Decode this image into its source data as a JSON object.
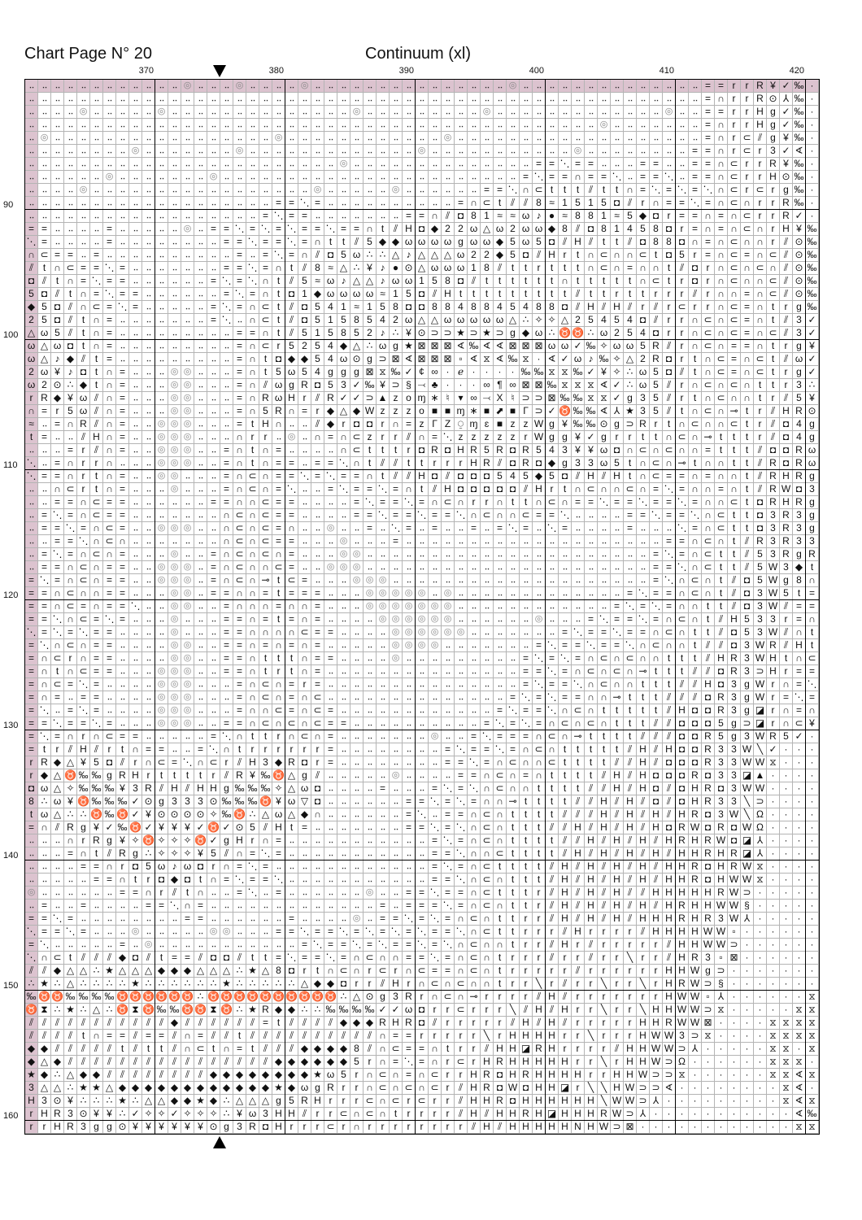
{
  "header": {
    "page_title": "Chart Page N° 20",
    "pattern_title": "Continuum (xl)"
  },
  "grid": {
    "column_labels": [
      "370",
      "380",
      "390",
      "400",
      "410",
      "420"
    ],
    "row_labels": [
      "90",
      "100",
      "110",
      "120",
      "130",
      "140",
      "150",
      "160"
    ],
    "highlight_color": "#dcc3cf",
    "center_marker_icon": "triangle",
    "rows": [
      "‥‥‥‥‥‥‥‥‥‥ ‥‥◎‥‥‥◎‥‥‥ ‥◎‥‥‥‥‥‥‥‥ ‥‥‥‥‥‥‥◎‥‥ ‥‥‥‥‥‥‥‥‥‥ ‥‥==rrR¥✓‰ ·",
      "‥‥‥‥‥‥‥‥‥‥ ‥‥‥‥‥‥‥‥‥‥ ‥‥‥‥‥‥‥‥‥‥ ‥‥‥‥‥‥‥‥‥‥ ‥‥‥‥‥‥‥‥‥‥ ‥‥=∩rrR⊙⅄‰ ·",
      "‥‥‥‥◎‥‥‥‥‥ ◎‥‥‥‥‥‥‥‥‥ ‥‥‥‥‥◎‥‥‥‥ ‥‥‥‥‥◎‥‥‥‥ ‥‥‥‥‥‥‥‥‥◎ ‥‥==rrHg✓‰ ·",
      "‥‥‥‥‥‥‥‥‥‥ ‥‥‥‥‥‥‥‥‥‥ ‥‥‥‥‥‥‥‥‥‥ ‥‥‥‥‥‥‥‥‥‥ ‥‥‥‥◎‥‥‥‥‥ ‥‥=∩rrHg✓‰ ·",
      "‥◎‥‥‥‥‥‥‥‥ ‥‥‥‥‥‥‥‥‥◎ ‥‥‥‥‥‥‥‥‥‥ ‥‥◎‥‥‥‥‥‥‥ ‥‥‥‥‥‥‥‥‥‥ ‥‥=∩r⊂⫽g¥‰ ·",
      "‥‥‥‥‥‥‥‥◎‥ ‥‥‥‥‥‥◎‥‥‥ ‥‥‥‥‥‥‥‥‥‥ ◎‥‥‥‥‥‥‥‥‥ ‥‥◎‥‥‥‥‥‥‥ ‥==∩r⊂r3✓∢ ·",
      "‥‥‥‥‥‥‥‥‥‥ ‥‥‥‥‥‥‥‥‥‥ ‥‥‥‥◎‥‥‥‥‥ ‥‥‥‥‥‥‥‥‥= =⋱==‥‥‥==‥ ‥==∩⊂rrR¥‰ ·",
      "‥‥‥‥‥‥◎‥‥‥ ‥‥‥‥◎‥‥‥‥‥ ‥‥‥‥‥‥‥‥‥‥ ‥‥‥‥‥‥‥‥=⋱ ==∩==⋱‥==⋱ ‥==∩⊂rrH⊙‰ ·",
      "‥‥‥‥◎‥‥‥‥‥ ‥‥‥‥‥‥‥‥‥‥ ‥‥◎‥‥‥‥‥◎‥ ‥‥‥‥‥==⋱∩⊂ ttt⫽tt∩=⋱= ⋱=⋱∩⊂r⊂rg‰ ·",
      "‥‥‥‥‥‥‥‥‥‥ ‥‥‥‥‥‥‥‥‥= =⋱=‥‥‥‥‥‥‥ ‥‥‥=∩⊂t⫽⫽8 ≈1515◘⫽r∩= =⋱=∩⊂∩rrR‰ ·",
      "‥‥‥‥‥‥‥‥‥‥ ‥‥‥‥‥‥‥‥=⋱ ==‥‥‥‥‥‥‥= =∩⫽◘81≈≈ω♪ ●≈881≈5◆◘r ==∩=∩⊂rrR✓ ·",
      "==‥‥‥‥=‥‥‥ ‥‥◎‥==⋱=⋱= ⋱==⋱==∩t⫽H ◘◆22ω△ω2ωω ◆8⫽◘81458◘ r=∩=∩⊂∩rH¥ ‰",
      "⋱=‥‥‥‥=‥‥‥ ‥‥‥‥‥==⋱== ⋱=∩tt⫽5◆◆ω ωωωgωω◆5ω5 ◘⫽H⫽tt⫽◘88 ◘∩=∩⊂∩∩r⫽⊙ ‰",
      "∩⊂==‥=‥‥‥‥ ‥‥‥‥‥‥=‥=⋱ =∩⫽◘5ω∴∴△♪ △△△ω22◆5◘⫽ Hrt∩⊂∩∩⊂t◘ 5r=∩⊂=∩⊂⫽⊙ ‰",
      "⫽t∩⊂==⋱=‥‥ ‥‥‥‥‥==⋱=∩ t⫽8≈△∴¥♪●⊙ △ωωω18⫽ttr ttt∩⊂∩=∩∩t ⫽◘r∩⊂∩⊂∩⫽⊙ ‰",
      "◘⫽t∩=⋱==‥‥ ‥‥‥‥=⋱=⋱∩t ⫽5≈ω♪△△♪ωω 158◘⫽ttttt t∩ttttt∩⊂t r◘r∩⊂∩∩⊂⫽⊙ ‰",
      "5◘⫽t∩=⋱==‥ ‥‥‥‥‥=⋱=∩t ◘1◆ωωωω≈15 ◘⫽Httttttt tt⫽ttrttrr r⫽r∩∩=∩⊂⫽⊙ ‰",
      "◆5◘⫽∩⊂=⋱=‥ ‥‥‥‥=⋱=∩⊂t ⫽◘541≈158◘ ◘884884548 8◘⫽H⫽H⫽r⫽r ⊂rr∩⊂=∩trg ‰",
      "25◘⫽t∩=‥‥‥ ‥‥‥‥=⋱‥∩⊂t ⫽◘5158542ω △△ωωωωω△∴✧ ✧△25454◘⫽r r∩⊂∩⊂=∩t⫽3 ✓",
      "△ω5⫽t∩=‥‥‥ ‥‥‥‥‥‥==∩t ⫽515852♪∴¥ ⊙⊃⊃★⊃★⊃g◆ω ∴♉♉∴ω254◘r r∩⊂∩⊂=∩⊂⫽3 ✓",
      "ω△ω◘t∩=‥‥‥ ‥‥‥‥‥‥=∩⊂r 5254◆△∴ωg★ ⊠⊠⊠∢‰∢∢⊠⊠⊠ ωω✓‰✧ωω5R⫽ r∩⊂∩==∩trg ¥",
      "ω△♪◆⫽t=‥‥‥ ‥‥‥‥‥‥=∩t◘ ◆◆54ω⊙g⊃⊠∢ ⊠⊠⊠▫∢⧖∢‰⧖· ∢✓ω♪‰✧△2R◘ rt∩⊂=∩⊂t⫽ω ✓",
      "2ω¥♪◘t∩=‥‥ ‥◎◎‥‥‥=∩t5 ω54ggg⊠⧖‰✓ ¢∞∙ℯ∙∙∙∙‰‰ ⧖⧖‰✓¥✧∴ω5◘ ⫽t∩⊂=∩⊂trg ✓",
      "ω2⊙∴◆t∩=‥‥ ‥◎◎‥‥‥=∩⫽ω gR◘53✓‰¥⊃§ ⤙♣∙∙∙∞¶∞⊠⊠ ‰⧖⧖⧖∢✓∴ω5⫽ r∩⊂∩⊂∩ttr3 ∴",
      "rR◆¥ω⫽∩=‥‥ ‥◎◎‥‥‥=∩Rω Hr⫽R✓✓⊃▲zo ɱ∗♮▾∞⤙X♮⊃⊃ ⊠‰‰⧖⧖✓g35⫽ rt∩⊂∩∩tr⫽5 ¥",
      "∩=r5ω⫽∩=‥‥ ‥◎◎‥‥‥=∩5R ∩=r◆△◆Wzzz o■■ɱ∗■⬈■Γ⊃ ✓♉‰‰∢⅄★35⫽ t∩⊂∩⊸tr⫽HR ⊙",
      "≈‥=∩R⫽∩=‥‥ ◎◎◎‥‥‥=tH∩ ‥‥⫽◆r◘◘r∩= zΓZ⍜ɱɛ■zzW g¥‰‰⊙g⊃Rrt ∩⊂∩∩⊂tr⫽◘4 g",
      "t=‥‥⫽H∩=‥‥ ◎◎◎‥‥‥∩rr‥ ◎‥∩=∩⊂zrr⫽ ∩=⋱zzzzzrW gg¥✓grrtt∩ ⊂∩⊸tttr⫽◘4 g",
      "‥‥‥=r⫽∩=‥‥ ◎◎◎‥‥=∩t∩= ‥‥‥‥∩⊂tttr ◘R◘HR5R◘R5 43¥¥ω◘∩⊂∩⊂ ∩∩=ttt⫽◘◘R ω",
      "⋱‥=∩rr∩‥‥‥ ◎◎◎‥‥=∩t∩= =‥==⋱∩t⫽⫽t trrrHR⫽◘R◘ ◆g33ω5t∩⊂∩ ⊸t∩∩tt⫽R◘R ω",
      "⋱==∩rt∩=‥‥ ◎◎‥‥‥=∩⊂∩= =⋱=⋱==∩t⫽⫽ H◘⫽◘◘◘545◆ 5◘⫽H⫽Ht∩⊂= =∩=∩∩t⫽RHR g",
      "‥‥∩⊂rt∩=‥‥ ‥◎‥‥‥=∩⊂∩= ⋱‥‥=⋱==⋱=∩ t⫽H◘◘◘◘◘⫽H rt∩⊂∩∩⊂∩=⋱ =∩∩=∩t⫽RW◘ 3",
      "‥‥==∩⊂==‥‥ ‥‥‥‥==∩∩⊂= =‥‥‥‥=⋱==⋱ =∩⊂∩rr∩tt∩ ⊂∩==⋱==⋱== ⋱=∩∩⊂t◘RHR g",
      "‥=⋱=∩⊂==‥‥ ‥‥‥‥‥∩⊂∩⊂= =‥‥‥‥==⋱== ⋱==⋱∩⊂∩∩⊂= =⋱‥‥‥‥==⋱= =⋱∩⊂tt◘3R3 g",
      "‥==⋱=∩⊂=‥‥ ◎◎◎‥‥∩⊂∩⊂= ∩‥‥◎‥‥=‥⋱= ‥=‥‥=‥=⋱=‥ ⋱=‥‥‥‥=‥‥‥ ⋱=∩⊂tt◘3R3 g",
      "‥‥==⋱∩⊂∩‥‥ ‥‥‥‥‥∩⊂∩⊂= =‥‥‥◎‥‥‥=‥ ‥‥‥‥‥‥‥‥‥‥ ‥‥‥‥‥‥‥‥‥= =∩⊂∩t⫽R3R3 3",
      "‥=⋱=∩⊂∩=‥‥ ‥◎‥‥=∩⊂∩⊂∩ =‥‥‥◎◎‥‥‥‥ ‥‥‥‥‥‥‥‥‥‥ ‥‥‥‥‥‥‥‥=⋱ =∩⊂tt⫽53Rg R",
      "‥==∩⊂∩==‥‥ ◎◎◎‥=∩⊂∩∩⊂ =‥‥◎◎◎‥‥‥‥ ‥‥‥‥‥‥‥‥‥‥ ‥‥‥‥‥‥‥‥== ⋱∩⊂tt⫽5W3◆ t",
      "=⋱=∩⊂∩==‥‥ ◎◎◎‥=∩⊂∩⊸t ⊂=‥‥‥◎◎◎‥‥ ‥‥‥‥‥‥‥‥‥‥ ‥‥‥‥‥‥‥‥=⋱ ∩⊂∩t⫽◘5Wg8 ∩",
      "==∩⊂∩∩==‥‥ ‥◎◎‥==∩∩=t ===‥‥‥◎◎◎◎ ◎‥◎‥‥‥‥‥‥‥ ‥‥‥‥‥‥=⋱== ∩⊂∩t⫽◘3W5t =",
      "==∩⊂=∩==⋱‥ ‥◎◎‥‥=∩∩∩= ∩∩=‥‥‥◎◎◎◎ ◎◎◎‥‥‥‥‥‥‥ ‥‥‥‥‥=⋱=⋱= ∩∩tt⫽◘3W⫽= =",
      "==⋱∩⊂=⋱=‥‥ ‥◎‥‥‥==∩=t =∩=‥‥‥‥◎◎◎ ◎◎◎‥‥‥‥‥‥◎ ‥‥‥=⋱==⋱=∩ ⊂∩t⫽H533r= ∩",
      "⋱=⋱=⋱==‥‥‥ ‥◎‥‥‥==∩∩∩ ∩⊂==‥‥‥‥◎◎ ◎◎◎◎‥‥‥‥‥‥ ‥=⋱==⋱==∩⊂ ∩tt⫽◘53W⫽∩ t",
      "=⋱∩⊂∩==‥‥‥ ‥◎◎‥‥==∩=∩ =∩=‥‥‥‥‥◎◎ ◎◎‥‥‥‥‥‥‥= ⋱==⋱==⋱∩⊂∩ ∩t⫽⫽◘3WR⫽H t",
      "=∩⊂r∩==‥‥‥ ‥◎◎‥‥==∩tt t∩==‥‥‥‥◎‥ ‥‥‥‥‥‥‥‥=⋱ =⋱=∩⊂∩⊂∩∩t tt⫽HR3WHt∩ ⊂",
      "=∩t∩⊂==‥‥‥ ◎◎◎‥‥==∩tr t∩=‥‥‥‥‥‥‥ ‥‥‥‥‥‥‥‥== ⋱=∩⊂∩⊂∩⊸tt t⫽⫽◘R3⊃Hr= =",
      "=∩⊂=⋱=‥‥‥‥ ◎◎◎‥‥‥=∩⊂∩ =r=‥‥‥‥‥‥‥ ‥‥‥‥‥‥‥‥=⋱ ==⋱∩⊂∩∩ttt ⫽⫽H◘3gWr∩= ⋱",
      "=∩=‥==‥‥‥‥ ◎◎◎‥‥‥=∩⊂∩ =∩⊂‥‥‥‥‥‥‥ ‥‥‥‥‥‥‥=⋱= ⋱==∩∩⊸ttt⫽ ⫽⫽◘R3gWr=⋱ =",
      "=⋱‥=⋱=‥‥‥‥ ◎◎◎‥‥‥=∩∩⊂ =∩⊂=‥‥‥‥‥‥ ‥‥‥‥‥‥=⋱== ⋱∩⊂∩ttttt⫽ H◘◘R3g◪r∩= ∩",
      "==⋱==⋱=‥‥‥ ◎◎◎‥‥==∩⊂∩ ⊂∩⊂==‥‥‥‥‥ ‥‥‥‥‥=⋱=⋱= ∩⊂∩⊂∩ttt⫽⫽ ◘◘◘5g⊃◪r∩⊂ ¥",
      "=⋱=∩r∩⊂==‥ ‥‥‥‥=⋱∩ttr ∩⊂∩=‥‥‥‥‥‥ ‥◎‥‥=⋱===∩ ⊂∩⊸tttt⫽⫽⫽ ◘◘R5g3WR5✓ ·",
      "=tr⫽H⫽rt∩= =‥‥=⋱∩trrr rrr=‥‥‥‥‥‥ ‥‥=⋱==⋱=∩⊂ ∩ttttt⫽H⫽H ◘◘R33W╲✓·· ·",
      "rR◆△¥5◘⫽r∩ ⊂=⋱∩⊂r⫽H3◆ R◘r=‥‥‥‥‥‥ ‥‥==⋱=∩⊂∩∩ ⊂tttt⫽⫽H⫽◘ ◘◘R33WW⧖·· ·",
      "r◆△♉‰‰gRHr ttttr⫽R¥‰♉ △g⫽‥‥‥‥‥◎‥ ‥‥‥==∩⊂∩=∩ tttt⫽H⫽H◘◘ ◘R◘33◪▲··· ·",
      "◘ω△✧‰‰‰¥3R ⫽H⫽HHg‰‰‰✧ △ω◘‥‥‥‥=‥‥ ‥=⋱=⋱∩⊂∩∩t ttt⫽⫽H⫽H◘⫽ ◘HR◘3WW··· ·",
      "8∴ω¥♉‰‰‰✓⊙ g333⊙‰‰‰♉¥ ω▽◘‥‥‥‥‥‥= =⋱=⋱=∩∩⊸tt tt⫽⫽H⫽H⫽◘⫽ ◘HR33╲⊃··· ·",
      "tω△∴∴♉‰♉✓¥ ⊙⊙⊙⊙✧‰♉∴△ω △◆∩‥‥‥‥‥‥= ⋱‥==∩⊂∩ttt t⫽⫽⫽H⫽H⫽H⫽ HR◘3W╲Ω··· ·",
      "=∩⫽Rg¥✓‰♉✓ ¥¥¥✓♉✓⊙5⫽H t=‥‥‥‥‥‥‥= =⋱=⋱∩⊂∩ttt ⫽⫽H⫽H⫽H⫽H◘ RW◘R◘WΩ··· ·",
      "‥‥‥∩rRg¥✧♉ ✧✧✧♉✓gHr∩= ‥‥‥‥‥‥‥‥‥‥ ‥=⋱=∩⊂∩ttt t⫽⫽H⫽H⫽H⫽H RHRW◘◪⅄··· ·",
      "‥‥‥=∩t⫽Rg∴ ✧✧✧¥5⫽∩=⋱= ‥‥‥‥‥‥‥‥‥‥ ‥==⋱∩∩⊂ttt t⫽H⫽H⫽H⫽H⫽ HHRHR◪⅄··· ·",
      "‥‥‥‥==∩r◘5 ω♪ω◘r∩=⋱=‥ ‥‥‥‥‥‥‥‥‥‥ ‥=⋱=∩⊂tttt ⫽H⫽H⫽H⫽H⫽H HR◘HRW⧖··· ·",
      "‥‥‥‥‥==∩tr ◘◆◘t∩=⋱==⋱ ‥‥‥‥‥‥‥‥‥‥ ‥==⋱∩⊂∩ttt ⫽H⫽H⫽H⫽H⫽H HR◘HWW⧖··· ·",
      "◎‥‥‥‥‥‥==∩ r⫽t∩‥‥=⋱‥= ‥‥‥‥‥‥◎‥‥= =⋱==∩⊂tttr ⫽H⫽H⫽H⫽⫽HH HHHRW⊃···· ·",
      "‥=‥‥=‥‥‥‥= =⋱∩=‥‥‥‥‥‥ ‥‥‥‥‥‥‥=‥= ==⋱=∩⊂∩ttr ⫽H⫽H⫽H⫽H⫽H RHHWW§···· ·",
      "==⋱=‥‥‥‥‥‥ ‥‥==‥‥‥‥‥‥ =‥‥‥‥◎‥==⋱ =⋱=∩⊂∩ttrr ⫽H⫽H⫽H⫽HHH RHR3W⅄···· ·",
      "⋱==⋱=‥‥‥◎‥ ‥‥‥‥◎◎‥‥‥= =⋱==⋱=⋱=⋱= ⋱==⋱∩⊂ttrr r⫽Hrrrr⫽HH HHWW▫····· ·",
      "=⋱‥‥‥‥‥=‥◎ ‥‥‥‥‥‥‥‥‥‥ ‥=⋱==⋱=⋱== ⋱=⋱∩⊂∩∩trr ⫽Hr⫽rrrrr⫽ HHWW⊃····· ·",
      "⋱∩⊂t⫽⫽⫽◆◘⫽ t==⫽◘◘⫽tt= ⋱==⋱=∩⊂∩∩= =⋱=∩⊂∩trrr ⫽rr⫽rr╲rr⫽ HR3▫⊠····· ·",
      "⫽⫽◆△△∴★△△△ ◆◆◆△△△∴★△8 ◘rt∩⊂∩r⊂r∩ ⊂==∩⊂∩trrr rr⫽rrrrrrH HWg⊃······ ·",
      "∴★∴△∴∴∴∴★∴ ∴∴∴∴∴★∴∴∴∴ ∴△◆◆◘rr⫽Hr ∩⊂∩⊂∩∩trr╲ r⫽rr╲rr╲rH RW⊃§······ ·",
      "‰♉♉‰‰‰‰♉♉♉ ♉♉♉∴♉♉♉♉♉♉ ♉♉♉♉∴△⊙g3R r∩⊂∩⊸rrrr⫽ H⫽rrrrrrrH WW▫⅄······ ⧖",
      "♉⧗∴★∴△∴♉⧗♉ ‰‰♉♉⧗♉∴★R◆ ◆∴∴‰‰‰‰✓✓ω ◘rr⊂rrr╲⫽H ⫽Hrr╲rr╲HH WW⊃⧖·····⧖ ⧖",
      "⫽⫽⫽⫽⫽⫽⫽⫽⫽⫽ ⫽◆⫽⫽⫽⫽⫽⫽=t ⫽⫽⫽⫽◆◆◆RHR ◘⫽rrrrr⫽H⫽ H⫽rrrrrHHR WW⊠····⧖⧖⧖ ⧖",
      "⫽⫽⫽⫽t∩==⫽= =⫽∩=⫽⫽t⫽⫽⫽ ⫽⫽⫽⫽⫽⫽⫽∩== rrrrr╲rHHH Hrr╲rrrHWW 3⊃⧖····⧖⧖⧖ ⧖",
      "◆◆⫽⫽⫽⫽⫽t⫽t t⫽∩⊂t∩=t⫽⫽ ⫽◆◆◆◆8⫽∩⊂= =∩trr⫽HH◪R Hrrrr⫽HHWW ⊃⅄·····⧖⧖· ⧖",
      "◆△◆⫽⫽⫽⫽⫽⫽⫽ ⫽⫽⫽⫽⫽⫽⫽⫽⫽◆ ◆◆◆◆◆5r∩=⋱ =∩r⊂rHRHHH HHrr╲rHHW⊃ Ω······⧖⧖⧖ ·",
      "★◆∴△◆◆⫽⫽⫽⫽ ⫽⫽⫽⫽◆◆◆◆◆◆ ◆◆★ω5r∩⊂∩= ∩⊂rrHR◘HRH HHHrrHHW⊃⊃ ⧖······⧖⧖∢ ⧖",
      "3△△∴★★△◆◆◆ ◆◆◆◆◆◆◆◆◆★ ◆ωgRrr∩⊂∩⊂ ∩⊂r⫽HR◘W◘H H◪r╲╲HW⊃⊃∢ ········⧖∢ ·",
      "H3⊙¥∴∴∴★∴△ △◆◆★◆∴△△△g 5RHrrr⊂∩⊂r ⊂rr⫽HHR◘HH HHHH╲WW⊃⅄· ········⧖∢ ⧖",
      "rHR3⊙¥¥∴✓✧ ✧✓✧✧✧∴¥ω3H H⫽rr⊂∩⊂∩tr rrr⫽H⫽HHRH ◪HHHRW⊃⅄·· ·········∢ ‰",
      "rrHR3gg⊙¥¥ ¥¥¥¥⊙g3R◘H rrr⊂r∩rrrr rrrr⫽H⫽HHH HHNHW⊃⊠··· ·········⧖ ⧖"
    ]
  }
}
